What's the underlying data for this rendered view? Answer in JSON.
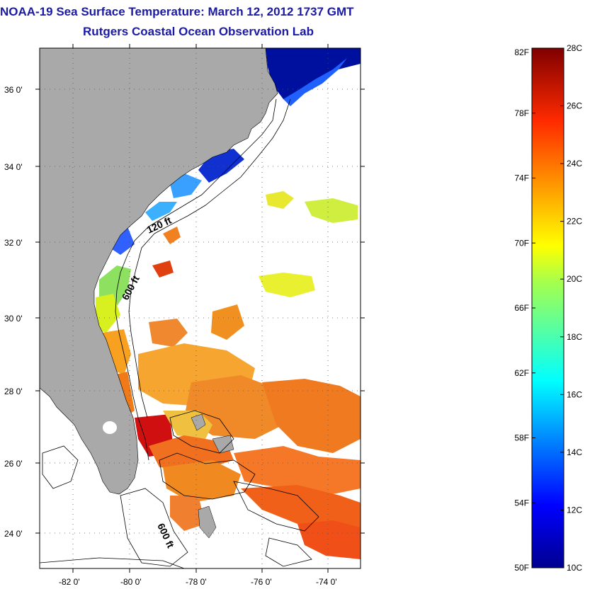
{
  "title": {
    "line1": "NOAA-19 Sea Surface Temperature:  March 12, 2012 1737 GMT",
    "line2": "Rutgers Coastal Ocean Observation Lab"
  },
  "map": {
    "lat_labels": [
      "36 0'",
      "34 0'",
      "32 0'",
      "30 0'",
      "28 0'",
      "26 0'",
      "24 0'"
    ],
    "lon_labels": [
      "-82 0'",
      "-80 0'",
      "-78 0'",
      "-76 0'",
      "-74 0'"
    ],
    "contour_labels": [
      "120 ft",
      "600 ft",
      "600 ft"
    ],
    "colors": {
      "land": "#a9a9a9",
      "no_data": "#ffffff"
    }
  },
  "colorbar": {
    "fahrenheit_labels": [
      "82F",
      "78F",
      "74F",
      "70F",
      "66F",
      "62F",
      "58F",
      "54F",
      "50F"
    ],
    "celsius_labels": [
      "28C",
      "26C",
      "24C",
      "22C",
      "20C",
      "18C",
      "16C",
      "14C",
      "12C",
      "10C"
    ],
    "range_c": [
      10,
      28
    ],
    "range_f": [
      50,
      82
    ]
  }
}
